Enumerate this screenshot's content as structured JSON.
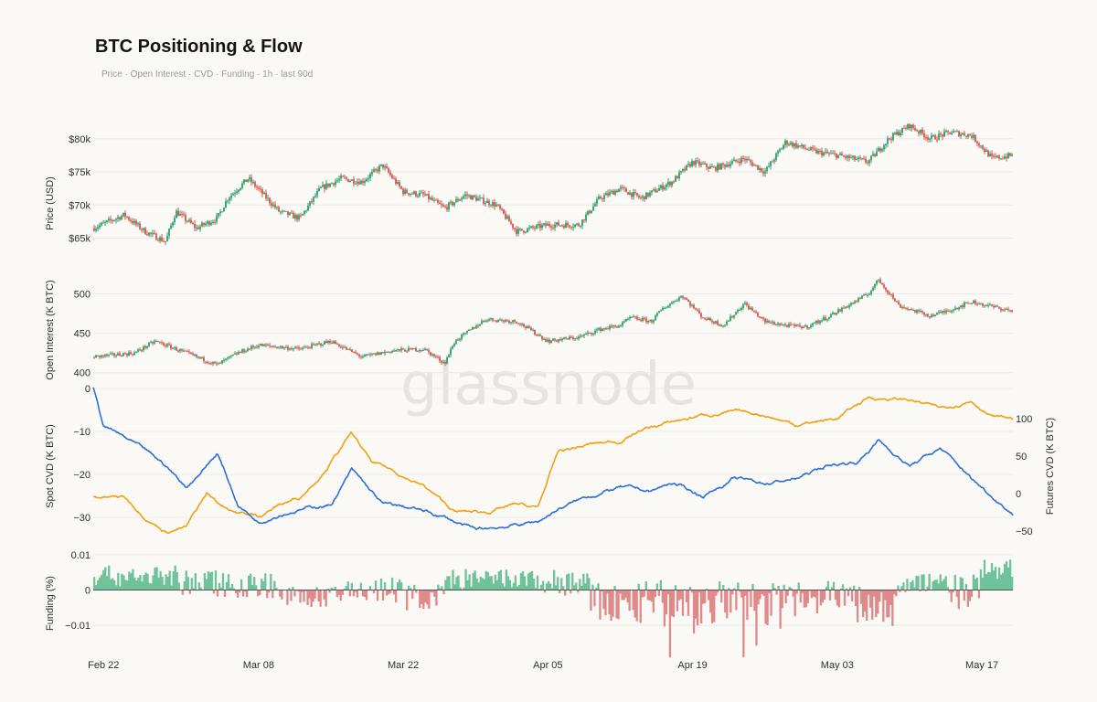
{
  "header": {
    "title": "BTC Positioning & Flow",
    "subtitle": "Price · Open Interest · CVD · Funding   ·   1h · last 90d"
  },
  "watermark": "glassnode",
  "colors": {
    "up": "#2e9e6a",
    "down": "#d0584e",
    "spot": "#2c6fd6",
    "futures": "#f0a012",
    "funding_pos": "#6fc29b",
    "funding_neg": "#e0898a",
    "grid": "#ecebe7"
  },
  "chart_data": [
    {
      "type": "candlestick",
      "panel": "price",
      "ylabel": "Price (USD)",
      "ylim": [
        63000,
        83000
      ],
      "yticks": [
        65000,
        70000,
        75000,
        80000
      ],
      "ytick_labels": [
        "$65k",
        "$70k",
        "$75k",
        "$80k"
      ],
      "x_start_date": "2024-02-21",
      "x_end_date": "2024-05-20",
      "xtick_labels": [
        "Feb 22",
        "Mar 08",
        "Mar 22",
        "Apr 05",
        "Apr 19",
        "May 03",
        "May 17"
      ],
      "xtick_dates": [
        "2024-02-22",
        "2024-03-08",
        "2024-03-22",
        "2024-04-05",
        "2024-04-19",
        "2024-05-03",
        "2024-05-17"
      ],
      "anchors_date": [
        "2024-02-21",
        "2024-02-24",
        "2024-02-26",
        "2024-02-28",
        "2024-02-29",
        "2024-03-02",
        "2024-03-04",
        "2024-03-05",
        "2024-03-07",
        "2024-03-10",
        "2024-03-12",
        "2024-03-14",
        "2024-03-16",
        "2024-03-18",
        "2024-03-20",
        "2024-03-22",
        "2024-03-24",
        "2024-03-26",
        "2024-03-28",
        "2024-03-31",
        "2024-04-02",
        "2024-04-05",
        "2024-04-08",
        "2024-04-10",
        "2024-04-12",
        "2024-04-14",
        "2024-04-17",
        "2024-04-19",
        "2024-04-21",
        "2024-04-24",
        "2024-04-26",
        "2024-04-28",
        "2024-05-01",
        "2024-05-03",
        "2024-05-06",
        "2024-05-08",
        "2024-05-10",
        "2024-05-12",
        "2024-05-14",
        "2024-05-16",
        "2024-05-18",
        "2024-05-20"
      ],
      "anchors_close": [
        66500,
        68500,
        66000,
        64500,
        69000,
        66500,
        68000,
        71000,
        74000,
        69000,
        68000,
        72500,
        74000,
        73500,
        76000,
        72000,
        71500,
        69500,
        71500,
        70000,
        66000,
        67000,
        67000,
        71000,
        72500,
        71000,
        73500,
        76500,
        75500,
        77000,
        75000,
        79500,
        78000,
        77500,
        76500,
        80000,
        82000,
        80000,
        81000,
        80500,
        77000,
        77500
      ]
    },
    {
      "type": "candlestick",
      "panel": "open_interest",
      "ylabel": "Open Interest (K BTC)",
      "ylim": [
        395,
        525
      ],
      "yticks": [
        400,
        450,
        500
      ],
      "ytick_labels": [
        "400",
        "450",
        "500"
      ],
      "anchors_date": [
        "2024-02-21",
        "2024-02-25",
        "2024-02-27",
        "2024-03-01",
        "2024-03-04",
        "2024-03-06",
        "2024-03-08",
        "2024-03-12",
        "2024-03-15",
        "2024-03-18",
        "2024-03-21",
        "2024-03-24",
        "2024-03-26",
        "2024-03-27",
        "2024-03-30",
        "2024-04-02",
        "2024-04-05",
        "2024-04-08",
        "2024-04-10",
        "2024-04-12",
        "2024-04-13",
        "2024-04-15",
        "2024-04-16",
        "2024-04-18",
        "2024-04-20",
        "2024-04-22",
        "2024-04-24",
        "2024-04-26",
        "2024-04-28",
        "2024-04-30",
        "2024-05-02",
        "2024-05-04",
        "2024-05-06",
        "2024-05-07",
        "2024-05-09",
        "2024-05-12",
        "2024-05-14",
        "2024-05-16",
        "2024-05-18",
        "2024-05-20"
      ],
      "anchors_value": [
        420,
        425,
        440,
        425,
        410,
        425,
        435,
        430,
        440,
        420,
        428,
        430,
        412,
        440,
        468,
        465,
        440,
        445,
        455,
        460,
        470,
        465,
        480,
        498,
        470,
        460,
        488,
        465,
        460,
        458,
        470,
        485,
        500,
        518,
        485,
        472,
        480,
        490,
        484,
        478
      ]
    },
    {
      "type": "line",
      "panel": "cvd",
      "ylabel_left": "Spot CVD (K BTC)",
      "ylabel_right": "Futures CVD (K BTC)",
      "ylim_left": [
        -34,
        0
      ],
      "ylim_right": [
        -55,
        140
      ],
      "yticks_left": [
        0,
        -10,
        -20,
        -30
      ],
      "ytick_labels_left": [
        "0",
        "−10",
        "−20",
        "−30"
      ],
      "yticks_right": [
        100,
        50,
        0,
        -50
      ],
      "ytick_labels_right": [
        "100",
        "50",
        "0",
        "−50"
      ],
      "series": [
        {
          "name": "Spot CVD",
          "axis": "left",
          "anchors_date": [
            "2024-02-21",
            "2024-02-22",
            "2024-02-23",
            "2024-02-25",
            "2024-02-28",
            "2024-03-01",
            "2024-03-04",
            "2024-03-06",
            "2024-03-08",
            "2024-03-10",
            "2024-03-12",
            "2024-03-15",
            "2024-03-17",
            "2024-03-20",
            "2024-03-23",
            "2024-03-26",
            "2024-03-29",
            "2024-04-01",
            "2024-04-04",
            "2024-04-06",
            "2024-04-09",
            "2024-04-12",
            "2024-04-15",
            "2024-04-17",
            "2024-04-20",
            "2024-04-23",
            "2024-04-26",
            "2024-04-29",
            "2024-05-02",
            "2024-05-05",
            "2024-05-07",
            "2024-05-10",
            "2024-05-13",
            "2024-05-16",
            "2024-05-19",
            "2024-05-20"
          ],
          "anchors_value": [
            0,
            -9,
            -10,
            -13,
            -18,
            -23,
            -15,
            -27,
            -31,
            -29,
            -28,
            -27,
            -19,
            -27,
            -28,
            -30,
            -33,
            -32,
            -31,
            -28,
            -25,
            -23,
            -24,
            -22,
            -25,
            -21,
            -22,
            -21,
            -18,
            -17,
            -12,
            -18,
            -14,
            -21,
            -27,
            -29
          ]
        },
        {
          "name": "Futures CVD",
          "axis": "right",
          "anchors_date": [
            "2024-02-21",
            "2024-02-24",
            "2024-02-26",
            "2024-02-28",
            "2024-03-01",
            "2024-03-03",
            "2024-03-04",
            "2024-03-06",
            "2024-03-08",
            "2024-03-10",
            "2024-03-12",
            "2024-03-14",
            "2024-03-17",
            "2024-03-19",
            "2024-03-21",
            "2024-03-24",
            "2024-03-27",
            "2024-03-30",
            "2024-04-02",
            "2024-04-04",
            "2024-04-06",
            "2024-04-09",
            "2024-04-12",
            "2024-04-14",
            "2024-04-17",
            "2024-04-20",
            "2024-04-23",
            "2024-04-26",
            "2024-04-29",
            "2024-05-03",
            "2024-05-06",
            "2024-05-10",
            "2024-05-13",
            "2024-05-16",
            "2024-05-18",
            "2024-05-20"
          ],
          "anchors_value": [
            -5,
            -5,
            -30,
            -50,
            -45,
            0,
            -12,
            -25,
            -30,
            -15,
            -5,
            25,
            80,
            40,
            30,
            10,
            -25,
            -25,
            -15,
            -20,
            55,
            65,
            70,
            85,
            95,
            105,
            108,
            105,
            92,
            100,
            128,
            125,
            113,
            125,
            103,
            100
          ]
        }
      ]
    },
    {
      "type": "bar",
      "panel": "funding",
      "ylabel": "Funding (%)",
      "ylim": [
        -0.018,
        0.0105
      ],
      "yticks": [
        0.01,
        0,
        -0.01
      ],
      "ytick_labels": [
        "0.01",
        "0",
        "−0.01"
      ],
      "regimes": [
        {
          "from": "2024-02-21",
          "to": "2024-02-29",
          "mean": 0.004,
          "amp": 0.003
        },
        {
          "from": "2024-02-29",
          "to": "2024-03-05",
          "mean": 0.002,
          "amp": 0.004
        },
        {
          "from": "2024-03-05",
          "to": "2024-03-10",
          "mean": 0.0015,
          "amp": 0.004
        },
        {
          "from": "2024-03-10",
          "to": "2024-03-16",
          "mean": -0.002,
          "amp": 0.003
        },
        {
          "from": "2024-03-16",
          "to": "2024-03-22",
          "mean": 0.0,
          "amp": 0.004
        },
        {
          "from": "2024-03-22",
          "to": "2024-03-26",
          "mean": -0.002,
          "amp": 0.004
        },
        {
          "from": "2024-03-26",
          "to": "2024-04-04",
          "mean": 0.003,
          "amp": 0.003
        },
        {
          "from": "2024-04-04",
          "to": "2024-04-09",
          "mean": 0.002,
          "amp": 0.004
        },
        {
          "from": "2024-04-09",
          "to": "2024-04-14",
          "mean": -0.004,
          "amp": 0.006
        },
        {
          "from": "2024-04-14",
          "to": "2024-04-28",
          "mean": -0.004,
          "amp": 0.007
        },
        {
          "from": "2024-04-28",
          "to": "2024-05-04",
          "mean": -0.001,
          "amp": 0.004
        },
        {
          "from": "2024-05-04",
          "to": "2024-05-09",
          "mean": -0.004,
          "amp": 0.006
        },
        {
          "from": "2024-05-09",
          "to": "2024-05-14",
          "mean": 0.002,
          "amp": 0.003
        },
        {
          "from": "2024-05-14",
          "to": "2024-05-17",
          "mean": 0.0,
          "amp": 0.006
        },
        {
          "from": "2024-05-17",
          "to": "2024-05-20",
          "mean": 0.006,
          "amp": 0.003
        }
      ]
    }
  ]
}
